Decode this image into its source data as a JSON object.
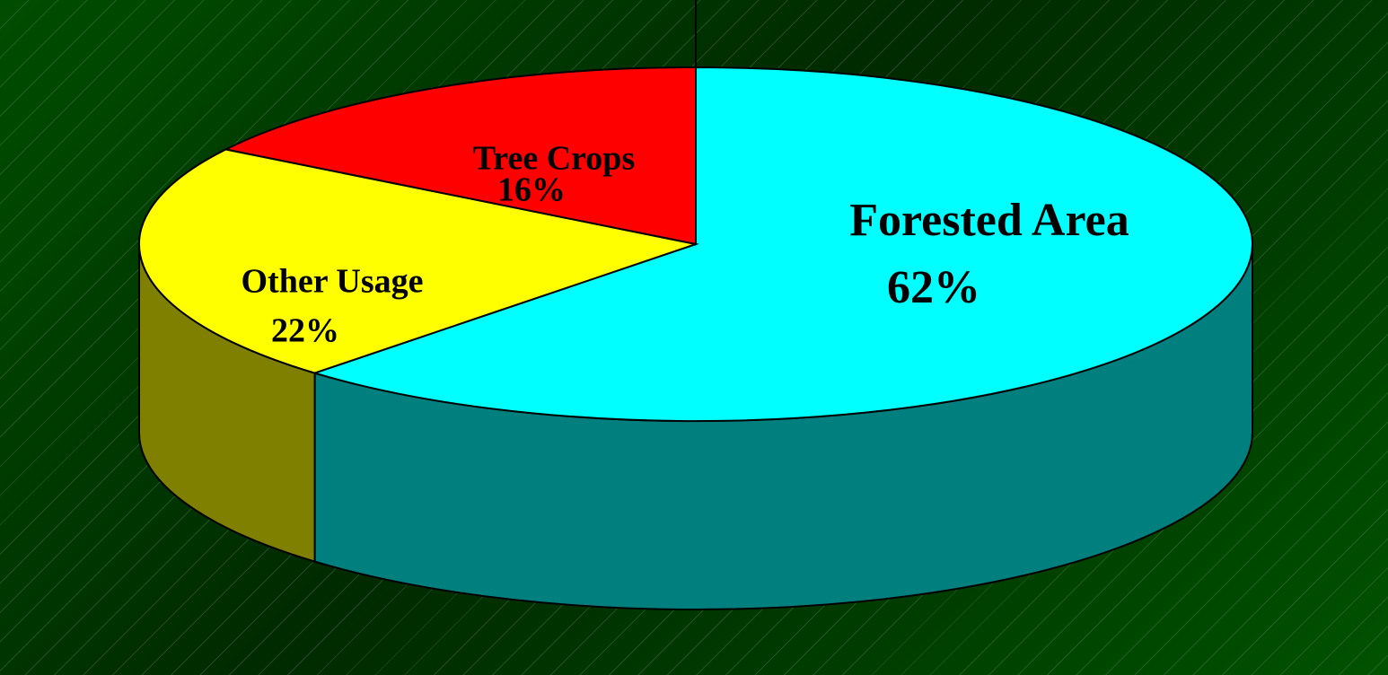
{
  "chart_data": {
    "type": "pie3d",
    "categories": [
      "Forested Area",
      "Other Usage",
      "Tree Crops"
    ],
    "values": [
      62,
      22,
      16
    ],
    "value_labels": [
      "62%",
      "22%",
      "16%"
    ],
    "colors": [
      "#00ffff",
      "#ffff00",
      "#ff0000"
    ]
  }
}
